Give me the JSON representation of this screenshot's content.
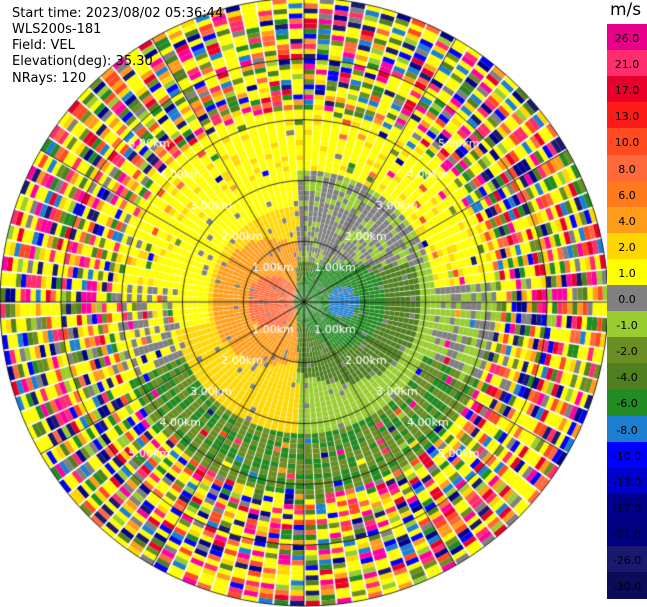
{
  "header": {
    "start_time": "Start time: 2023/08/02 05:36:44",
    "instrument": "WLS200s-181",
    "field": "Field: VEL",
    "elevation": "Elevation(deg): 35.30",
    "nrays": "NRays: 120"
  },
  "ppi": {
    "range_labels": [
      "1.00km",
      "2.00km",
      "3.00km",
      "4.00km",
      "5.00km"
    ],
    "ray_count": 120,
    "rings": 5
  },
  "colorbar": {
    "unit": "m/s",
    "ticks": [
      "26.0",
      "21.0",
      "17.0",
      "13.0",
      "10.0",
      "8.0",
      "6.0",
      "4.0",
      "2.0",
      "1.0",
      "0.0",
      "-1.0",
      "-2.0",
      "-4.0",
      "-6.0",
      "-8.0",
      "-10.0",
      "-13.0",
      "-17.0",
      "-21.0",
      "-26.0",
      "-30.0"
    ],
    "colors": [
      "#e8008a",
      "#ff2d6e",
      "#e8002a",
      "#ff1a1a",
      "#ff4b1f",
      "#ff6a3d",
      "#ff7a1a",
      "#ff9d1a",
      "#ffd700",
      "#ffff00",
      "#808080",
      "#9acd32",
      "#6b8e23",
      "#4f7f1f",
      "#228b22",
      "#1e7fd0",
      "#0000ff",
      "#0000cd",
      "#00008b",
      "#000080",
      "#191970",
      "#0b0b5a"
    ]
  }
}
